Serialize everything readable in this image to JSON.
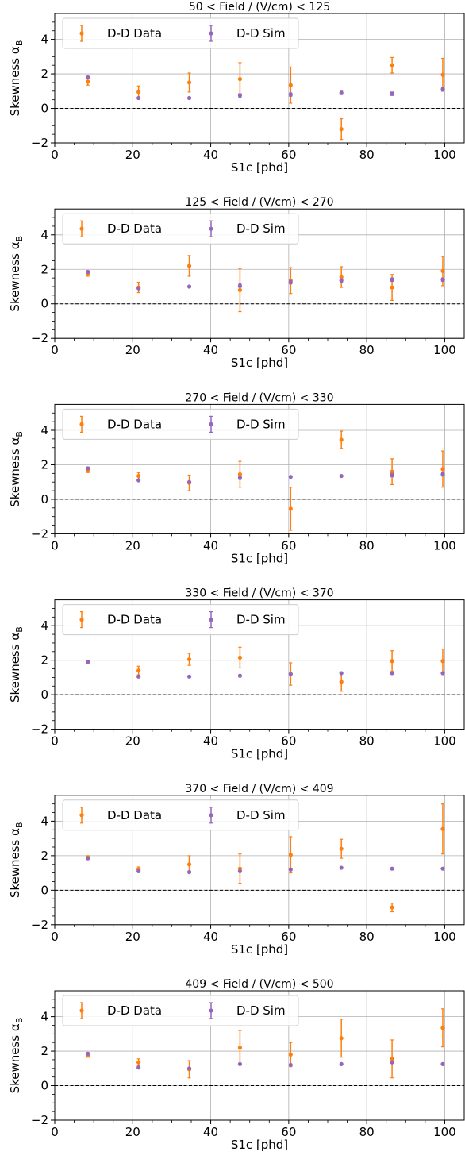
{
  "figure": {
    "colors": {
      "data": "#ff7f0e",
      "sim": "#9467bd",
      "grid": "#b0b0b0",
      "axis": "#000000"
    }
  },
  "chart_data": [
    {
      "type": "scatter",
      "title": "50 < Field / (V/cm) < 125",
      "xlabel": "S1c [phd]",
      "ylabel": "Skewness α_B",
      "xlim": [
        0,
        105
      ],
      "ylim": [
        -2,
        5.5
      ],
      "xticks": [
        0,
        20,
        40,
        60,
        80,
        100
      ],
      "yticks": [
        -2,
        0,
        2,
        4
      ],
      "grid": true,
      "legend": "top-left",
      "reference_line": 0,
      "series": [
        {
          "name": "D-D Data",
          "x": [
            8.5,
            21.5,
            34.5,
            47.5,
            60.5,
            73.5,
            86.5,
            99.5
          ],
          "y": [
            1.55,
            0.95,
            1.5,
            1.7,
            1.35,
            -1.2,
            2.5,
            1.95
          ],
          "err": [
            0.2,
            0.35,
            0.55,
            0.95,
            1.05,
            0.6,
            0.45,
            0.95
          ]
        },
        {
          "name": "D-D Sim",
          "x": [
            8.5,
            21.5,
            34.5,
            47.5,
            60.5,
            73.5,
            86.5,
            99.5
          ],
          "y": [
            1.8,
            0.6,
            0.6,
            0.75,
            0.8,
            0.9,
            0.85,
            1.1
          ],
          "err": [
            0.05,
            0.05,
            0.05,
            0.1,
            0.1,
            0.1,
            0.1,
            0.1
          ]
        }
      ]
    },
    {
      "type": "scatter",
      "title": "125 < Field / (V/cm) < 270",
      "xlabel": "S1c [phd]",
      "ylabel": "Skewness α_B",
      "xlim": [
        0,
        105
      ],
      "ylim": [
        -2,
        5.5
      ],
      "xticks": [
        0,
        20,
        40,
        60,
        80,
        100
      ],
      "yticks": [
        -2,
        0,
        2,
        4
      ],
      "grid": true,
      "legend": "top-left",
      "reference_line": 0,
      "series": [
        {
          "name": "D-D Data",
          "x": [
            8.5,
            21.5,
            34.5,
            47.5,
            60.5,
            73.5,
            86.5,
            99.5
          ],
          "y": [
            1.75,
            0.95,
            2.2,
            0.8,
            1.35,
            1.55,
            0.95,
            1.9
          ],
          "err": [
            0.15,
            0.3,
            0.6,
            1.25,
            0.75,
            0.6,
            0.75,
            0.85
          ]
        },
        {
          "name": "D-D Sim",
          "x": [
            8.5,
            21.5,
            34.5,
            47.5,
            60.5,
            73.5,
            86.5,
            99.5
          ],
          "y": [
            1.85,
            0.9,
            1.0,
            1.05,
            1.25,
            1.35,
            1.4,
            1.4
          ],
          "err": [
            0.05,
            0.05,
            0.05,
            0.1,
            0.1,
            0.1,
            0.1,
            0.1
          ]
        }
      ]
    },
    {
      "type": "scatter",
      "title": "270 < Field / (V/cm) < 330",
      "xlabel": "S1c [phd]",
      "ylabel": "Skewness α_B",
      "xlim": [
        0,
        105
      ],
      "ylim": [
        -2,
        5.5
      ],
      "xticks": [
        0,
        20,
        40,
        60,
        80,
        100
      ],
      "yticks": [
        -2,
        0,
        2,
        4
      ],
      "grid": true,
      "legend": "top-left",
      "reference_line": 0,
      "series": [
        {
          "name": "D-D Data",
          "x": [
            8.5,
            21.5,
            34.5,
            47.5,
            60.5,
            73.5,
            86.5,
            99.5
          ],
          "y": [
            1.7,
            1.35,
            0.95,
            1.45,
            -0.55,
            3.45,
            1.6,
            1.75
          ],
          "err": [
            0.15,
            0.2,
            0.45,
            0.75,
            1.25,
            0.5,
            0.75,
            1.05
          ]
        },
        {
          "name": "D-D Sim",
          "x": [
            8.5,
            21.5,
            34.5,
            47.5,
            60.5,
            73.5,
            86.5,
            99.5
          ],
          "y": [
            1.8,
            1.1,
            1.0,
            1.25,
            1.3,
            1.35,
            1.4,
            1.45
          ],
          "err": [
            0.05,
            0.05,
            0.05,
            0.1,
            0.05,
            0.05,
            0.1,
            0.1
          ]
        }
      ]
    },
    {
      "type": "scatter",
      "title": "330 < Field / (V/cm) < 370",
      "xlabel": "S1c [phd]",
      "ylabel": "Skewness α_B",
      "xlim": [
        0,
        105
      ],
      "ylim": [
        -2,
        5.5
      ],
      "xticks": [
        0,
        20,
        40,
        60,
        80,
        100
      ],
      "yticks": [
        -2,
        0,
        2,
        4
      ],
      "grid": true,
      "legend": "top-left",
      "reference_line": 0,
      "series": [
        {
          "name": "D-D Data",
          "x": [
            8.5,
            21.5,
            34.5,
            47.5,
            60.5,
            73.5,
            86.5,
            99.5
          ],
          "y": [
            1.9,
            1.4,
            2.05,
            2.15,
            1.2,
            0.75,
            1.95,
            1.95
          ],
          "err": [
            0.1,
            0.25,
            0.35,
            0.6,
            0.65,
            0.55,
            0.6,
            0.7
          ]
        },
        {
          "name": "D-D Sim",
          "x": [
            8.5,
            21.5,
            34.5,
            47.5,
            60.5,
            73.5,
            86.5,
            99.5
          ],
          "y": [
            1.9,
            1.05,
            1.05,
            1.1,
            1.2,
            1.25,
            1.25,
            1.25
          ],
          "err": [
            0.05,
            0.05,
            0.05,
            0.05,
            0.05,
            0.05,
            0.05,
            0.05
          ]
        }
      ]
    },
    {
      "type": "scatter",
      "title": "370 < Field / (V/cm) < 409",
      "xlabel": "S1c [phd]",
      "ylabel": "Skewness α_B",
      "xlim": [
        0,
        105
      ],
      "ylim": [
        -2,
        5.5
      ],
      "xticks": [
        0,
        20,
        40,
        60,
        80,
        100
      ],
      "yticks": [
        -2,
        0,
        2,
        4
      ],
      "grid": true,
      "legend": "top-left",
      "reference_line": 0,
      "series": [
        {
          "name": "D-D Data",
          "x": [
            8.5,
            21.5,
            34.5,
            47.5,
            60.5,
            73.5,
            86.5,
            99.5
          ],
          "y": [
            1.9,
            1.2,
            1.5,
            1.25,
            2.05,
            2.4,
            -1.0,
            3.55
          ],
          "err": [
            0.1,
            0.15,
            0.5,
            0.85,
            1.05,
            0.55,
            0.25,
            1.45
          ]
        },
        {
          "name": "D-D Sim",
          "x": [
            8.5,
            21.5,
            34.5,
            47.5,
            60.5,
            73.5,
            86.5,
            99.5
          ],
          "y": [
            1.85,
            1.1,
            1.05,
            1.1,
            1.2,
            1.3,
            1.25,
            1.25
          ],
          "err": [
            0.05,
            0.05,
            0.05,
            0.05,
            0.05,
            0.05,
            0.05,
            0.05
          ]
        }
      ]
    },
    {
      "type": "scatter",
      "title": "409 < Field / (V/cm) < 500",
      "xlabel": "S1c [phd]",
      "ylabel": "Skewness α_B",
      "xlim": [
        0,
        105
      ],
      "ylim": [
        -2,
        5.5
      ],
      "xticks": [
        0,
        20,
        40,
        60,
        80,
        100
      ],
      "yticks": [
        -2,
        0,
        2,
        4
      ],
      "grid": true,
      "legend": "top-left",
      "reference_line": 0,
      "series": [
        {
          "name": "D-D Data",
          "x": [
            8.5,
            21.5,
            34.5,
            47.5,
            60.5,
            73.5,
            86.5,
            99.5
          ],
          "y": [
            1.75,
            1.35,
            0.95,
            2.2,
            1.8,
            2.75,
            1.55,
            3.35
          ],
          "err": [
            0.1,
            0.2,
            0.5,
            1.0,
            0.7,
            1.1,
            1.1,
            1.1
          ]
        },
        {
          "name": "D-D Sim",
          "x": [
            8.5,
            21.5,
            34.5,
            47.5,
            60.5,
            73.5,
            86.5,
            99.5
          ],
          "y": [
            1.85,
            1.05,
            1.0,
            1.25,
            1.2,
            1.25,
            1.35,
            1.25
          ],
          "err": [
            0.05,
            0.05,
            0.05,
            0.05,
            0.05,
            0.05,
            0.05,
            0.05
          ]
        }
      ]
    }
  ]
}
